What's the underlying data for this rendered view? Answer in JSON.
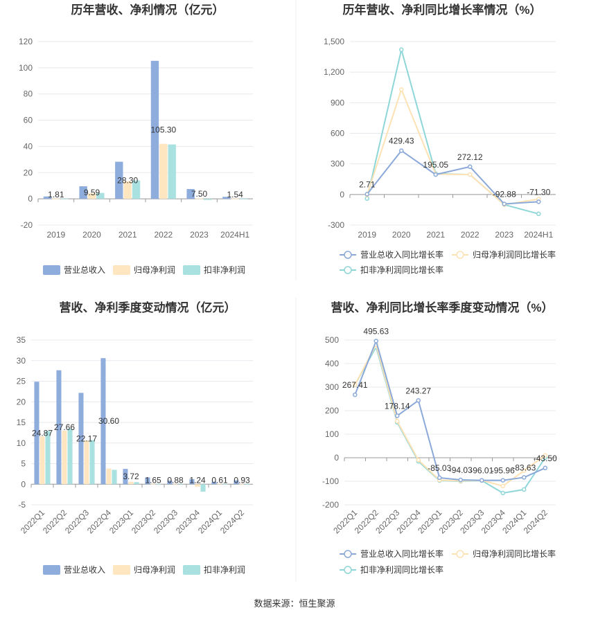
{
  "colors": {
    "s1": "#8eacdc",
    "s2": "#fde6c0",
    "s3": "#a9e0e0",
    "s1_line": "#8ba9d8",
    "s2_line": "#fde2b4",
    "s3_line": "#8ed6d8"
  },
  "legend": {
    "bar": [
      "营业总收入",
      "归母净利润",
      "扣非净利润"
    ],
    "line": [
      "营业总收入同比增长率",
      "归母净利润同比增长率",
      "扣非净利润同比增长率"
    ]
  },
  "source": "数据来源：恒生聚源",
  "chart_data": [
    {
      "type": "bar",
      "title": "历年营收、净利情况（亿元）",
      "categories": [
        "2019",
        "2020",
        "2021",
        "2022",
        "2023",
        "2024H1"
      ],
      "ylim": [
        -20,
        120
      ],
      "yticks": [
        -20,
        0,
        20,
        40,
        60,
        80,
        100,
        120
      ],
      "series": [
        {
          "name": "营业总收入",
          "values": [
            1.81,
            9.59,
            28.3,
            105.3,
            7.5,
            1.54
          ]
        },
        {
          "name": "归母净利润",
          "values": [
            0.2,
            4.2,
            13.5,
            42.0,
            0.3,
            0.2
          ]
        },
        {
          "name": "扣非净利润",
          "values": [
            0.1,
            4.5,
            14.0,
            41.5,
            -0.8,
            0.1
          ]
        }
      ],
      "labels": [
        "1.81",
        "9.59",
        "28.30",
        "105.30",
        "7.50",
        "1.54"
      ],
      "legend_position": "bottom"
    },
    {
      "type": "line",
      "title": "历年营收、净利同比增长率情况（%）",
      "categories": [
        "2019",
        "2020",
        "2021",
        "2022",
        "2023",
        "2024H1"
      ],
      "ylim": [
        -300,
        1500
      ],
      "yticks": [
        -300,
        0,
        300,
        600,
        900,
        1200,
        1500
      ],
      "ytick_labels": [
        "-300",
        "0",
        "300",
        "600",
        "900",
        "1,200",
        "1,500"
      ],
      "series": [
        {
          "name": "营业总收入同比增长率",
          "values": [
            2.71,
            429.43,
            195.05,
            272.12,
            -92.88,
            -71.3
          ]
        },
        {
          "name": "归母净利润同比增长率",
          "values": [
            -5,
            1030,
            200,
            195,
            -100,
            -45
          ]
        },
        {
          "name": "扣非净利润同比增长率",
          "values": [
            -40,
            1420,
            205,
            195,
            -100,
            -190
          ]
        }
      ],
      "labels": [
        "2.71",
        "429.43",
        "195.05",
        "272.12",
        "-92.88",
        "-71.30"
      ],
      "legend_position": "bottom"
    },
    {
      "type": "bar",
      "title": "营收、净利季度变动情况（亿元）",
      "categories": [
        "2022Q1",
        "2022Q2",
        "2022Q3",
        "2022Q4",
        "2023Q1",
        "2023Q2",
        "2023Q3",
        "2023Q4",
        "2024Q1",
        "2024Q2"
      ],
      "ylim": [
        -5,
        35
      ],
      "yticks": [
        -5,
        0,
        5,
        10,
        15,
        20,
        25,
        30,
        35
      ],
      "series": [
        {
          "name": "营业总收入",
          "values": [
            24.87,
            27.66,
            22.17,
            30.6,
            3.72,
            1.65,
            0.88,
            1.24,
            0.61,
            0.93
          ]
        },
        {
          "name": "归母净利润",
          "values": [
            11.6,
            13.0,
            10.6,
            3.8,
            0.6,
            0.05,
            0.0,
            -0.6,
            0.1,
            0.02
          ]
        },
        {
          "name": "扣非净利润",
          "values": [
            12.9,
            13.5,
            10.7,
            3.5,
            0.5,
            0.05,
            -0.05,
            -1.8,
            0.05,
            0.02
          ]
        }
      ],
      "labels": [
        "24.87",
        "27.66",
        "22.17",
        "30.60",
        "3.72",
        "1.65",
        "0.88",
        "1.24",
        "0.61",
        "0.93"
      ],
      "legend_position": "bottom"
    },
    {
      "type": "line",
      "title": "营收、净利同比增长率季度变动情况（%）",
      "categories": [
        "2022Q1",
        "2022Q2",
        "2022Q3",
        "2022Q4",
        "2023Q1",
        "2023Q2",
        "2023Q3",
        "2023Q4",
        "2024Q1",
        "2024Q2"
      ],
      "ylim": [
        -200,
        500
      ],
      "yticks": [
        -200,
        -100,
        0,
        100,
        200,
        300,
        400,
        500
      ],
      "ytick_labels": [
        "-200",
        "-100",
        "0",
        "100",
        "200",
        "300",
        "400",
        "500"
      ],
      "series": [
        {
          "name": "营业总收入同比增长率",
          "values": [
            267.41,
            495.63,
            178.14,
            243.27,
            -85.03,
            -94.03,
            -96.01,
            -95.96,
            -83.63,
            -43.5
          ]
        },
        {
          "name": "归母净利润同比增长率",
          "values": [
            310,
            480,
            155,
            -10,
            -95,
            -98,
            -96,
            -120,
            -55,
            10
          ]
        },
        {
          "name": "扣非净利润同比增长率",
          "values": [
            310,
            470,
            150,
            -15,
            -97,
            -100,
            -97,
            -150,
            -135,
            0
          ]
        }
      ],
      "labels": [
        "267.41",
        "495.63",
        "178.14",
        "243.27",
        "-85.03",
        "-94.03",
        "-96.01",
        "-95.96",
        "-83.63",
        "-43.50"
      ],
      "legend_position": "bottom"
    }
  ]
}
